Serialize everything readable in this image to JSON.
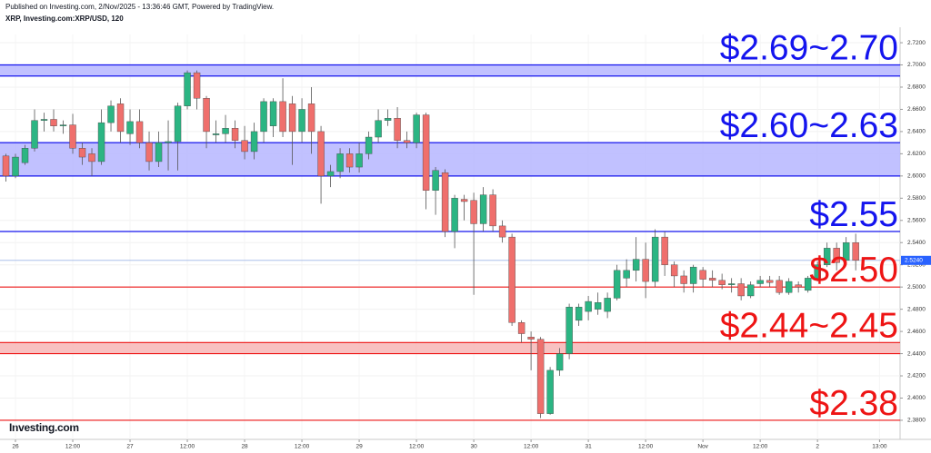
{
  "chart_data": {
    "type": "candlestick",
    "published": "Published on Investing.com, 2/Nov/2025 - 13:36:46 GMT, Powered by TradingView.",
    "title": "XRP, Investing.com:XRP/USD, 120",
    "logo": "Investing.com",
    "up_color": "#2bb583",
    "down_color": "#ef6f6c",
    "x": [
      -2,
      0,
      2,
      4,
      6,
      8,
      10,
      12,
      14,
      16,
      18,
      20,
      22,
      24,
      26,
      28,
      30,
      32,
      34,
      36,
      38,
      40,
      42,
      44,
      46,
      48,
      50,
      52,
      54,
      56,
      58,
      60,
      62,
      64,
      66,
      68,
      70,
      72,
      74,
      76,
      78,
      80,
      82,
      84,
      86,
      88,
      90,
      92,
      94,
      96,
      98,
      100,
      102,
      104,
      106,
      108,
      110,
      112,
      114,
      116,
      118,
      120,
      122,
      124,
      126,
      128,
      130,
      132,
      134,
      136,
      138,
      140,
      142,
      144,
      146,
      148,
      150,
      152,
      154,
      156,
      158,
      160,
      162,
      164,
      166,
      168,
      170,
      172,
      174,
      176
    ],
    "open": [
      2.618,
      2.6,
      2.612,
      2.625,
      2.65,
      2.651,
      2.645,
      2.646,
      2.625,
      2.62,
      2.613,
      2.648,
      2.665,
      2.638,
      2.649,
      2.63,
      2.613,
      2.63,
      2.631,
      2.663,
      2.693,
      2.67,
      2.637,
      2.638,
      2.643,
      2.632,
      2.622,
      2.64,
      2.645,
      2.667,
      2.665,
      2.64,
      2.665,
      2.64,
      2.6,
      2.604,
      2.62,
      2.608,
      2.62,
      2.635,
      2.65,
      2.652,
      2.632,
      2.63,
      2.655,
      2.587,
      2.603,
      2.55,
      2.579,
      2.578,
      2.557,
      2.583,
      2.555,
      2.545,
      2.468,
      2.455,
      2.453,
      2.386,
      2.425,
      2.44,
      2.47,
      2.478,
      2.48,
      2.478,
      2.49,
      2.508,
      2.515,
      2.525,
      2.505,
      2.545,
      2.52,
      2.51,
      2.503,
      2.515,
      2.508,
      2.506,
      2.502,
      2.503,
      2.492,
      2.503,
      2.506,
      2.506,
      2.495,
      2.502,
      2.497,
      2.508,
      2.52,
      2.535,
      2.524,
      2.54
    ],
    "high": [
      2.62,
      2.62,
      2.628,
      2.66,
      2.657,
      2.66,
      2.65,
      2.656,
      2.63,
      2.625,
      2.66,
      2.668,
      2.67,
      2.66,
      2.66,
      2.64,
      2.64,
      2.65,
      2.666,
      2.695,
      2.695,
      2.672,
      2.65,
      2.655,
      2.65,
      2.645,
      2.648,
      2.67,
      2.67,
      2.688,
      2.672,
      2.67,
      2.68,
      2.645,
      2.61,
      2.625,
      2.625,
      2.63,
      2.64,
      2.66,
      2.66,
      2.662,
      2.64,
      2.657,
      2.657,
      2.608,
      2.606,
      2.583,
      2.583,
      2.585,
      2.59,
      2.588,
      2.56,
      2.548,
      2.47,
      2.46,
      2.455,
      2.428,
      2.445,
      2.485,
      2.485,
      2.492,
      2.495,
      2.495,
      2.52,
      2.525,
      2.545,
      2.54,
      2.552,
      2.55,
      2.523,
      2.515,
      2.52,
      2.518,
      2.515,
      2.512,
      2.508,
      2.508,
      2.505,
      2.51,
      2.51,
      2.51,
      2.508,
      2.505,
      2.51,
      2.523,
      2.54,
      2.54,
      2.545,
      2.548
    ],
    "low": [
      2.595,
      2.598,
      2.61,
      2.622,
      2.64,
      2.64,
      2.638,
      2.62,
      2.61,
      2.6,
      2.61,
      2.64,
      2.63,
      2.628,
      2.625,
      2.605,
      2.608,
      2.605,
      2.605,
      2.66,
      2.66,
      2.625,
      2.63,
      2.63,
      2.625,
      2.615,
      2.615,
      2.63,
      2.635,
      2.635,
      2.61,
      2.63,
      2.62,
      2.575,
      2.59,
      2.598,
      2.603,
      2.603,
      2.615,
      2.63,
      2.645,
      2.625,
      2.625,
      2.625,
      2.57,
      2.565,
      2.545,
      2.535,
      2.56,
      2.493,
      2.55,
      2.55,
      2.54,
      2.465,
      2.45,
      2.425,
      2.382,
      2.385,
      2.42,
      2.435,
      2.465,
      2.47,
      2.475,
      2.472,
      2.488,
      2.5,
      2.505,
      2.49,
      2.5,
      2.51,
      2.5,
      2.495,
      2.495,
      2.5,
      2.5,
      2.498,
      2.495,
      2.488,
      2.49,
      2.5,
      2.5,
      2.493,
      2.493,
      2.495,
      2.495,
      2.505,
      2.518,
      2.515,
      2.52,
      2.515
    ],
    "close": [
      2.6,
      2.617,
      2.625,
      2.65,
      2.651,
      2.645,
      2.646,
      2.625,
      2.617,
      2.613,
      2.648,
      2.663,
      2.64,
      2.649,
      2.63,
      2.613,
      2.63,
      2.631,
      2.663,
      2.693,
      2.67,
      2.64,
      2.638,
      2.643,
      2.632,
      2.622,
      2.64,
      2.667,
      2.667,
      2.64,
      2.64,
      2.66,
      2.64,
      2.6,
      2.604,
      2.62,
      2.608,
      2.62,
      2.635,
      2.65,
      2.652,
      2.632,
      2.63,
      2.655,
      2.587,
      2.605,
      2.55,
      2.58,
      2.577,
      2.557,
      2.583,
      2.555,
      2.545,
      2.468,
      2.458,
      2.453,
      2.386,
      2.425,
      2.44,
      2.482,
      2.482,
      2.487,
      2.486,
      2.49,
      2.515,
      2.515,
      2.525,
      2.505,
      2.545,
      2.52,
      2.51,
      2.503,
      2.518,
      2.507,
      2.506,
      2.502,
      2.503,
      2.492,
      2.502,
      2.506,
      2.504,
      2.495,
      2.505,
      2.5,
      2.508,
      2.52,
      2.535,
      2.522,
      2.54,
      2.524
    ],
    "last_price": {
      "value": 2.524,
      "label": "2.5240"
    },
    "bands": [
      {
        "label": "$2.69~2.70",
        "low": 2.69,
        "high": 2.7,
        "color": "#1414ee",
        "fill": "#b6b6ff"
      },
      {
        "label": "$2.60~2.63",
        "low": 2.6,
        "high": 2.63,
        "color": "#1414ee",
        "fill": "#b6b6ff"
      },
      {
        "label": "$2.44~2.45",
        "low": 2.44,
        "high": 2.45,
        "color": "#ee1414",
        "fill": "#f7b6b6"
      }
    ],
    "lines": [
      {
        "label": "$2.55",
        "value": 2.55,
        "color": "#1414ee"
      },
      {
        "label": "$2.50",
        "value": 2.5,
        "color": "#ee1414"
      },
      {
        "label": "$2.38",
        "value": 2.38,
        "color": "#ee1414"
      }
    ],
    "xlim": [
      -3.24,
      185.3
    ],
    "xticks": [
      {
        "value": 0,
        "label": "26"
      },
      {
        "value": 12,
        "label": "12:00"
      },
      {
        "value": 24,
        "label": "27"
      },
      {
        "value": 36,
        "label": "12:00"
      },
      {
        "value": 48,
        "label": "28"
      },
      {
        "value": 60,
        "label": "12:00"
      },
      {
        "value": 72,
        "label": "29"
      },
      {
        "value": 84,
        "label": "12:00"
      },
      {
        "value": 96,
        "label": "30"
      },
      {
        "value": 108,
        "label": "12:00"
      },
      {
        "value": 120,
        "label": "31"
      },
      {
        "value": 132,
        "label": "12:00"
      },
      {
        "value": 144,
        "label": "Nov"
      },
      {
        "value": 156,
        "label": "12:00"
      },
      {
        "value": 168,
        "label": "2"
      },
      {
        "value": 181,
        "label": "13:00"
      }
    ],
    "ylim": [
      2.3628,
      2.7274
    ],
    "yticks": [
      {
        "value": 2.38,
        "label": "2.3800"
      },
      {
        "value": 2.4,
        "label": "2.4000"
      },
      {
        "value": 2.42,
        "label": "2.4200"
      },
      {
        "value": 2.44,
        "label": "2.4400"
      },
      {
        "value": 2.46,
        "label": "2.4600"
      },
      {
        "value": 2.48,
        "label": "2.4800"
      },
      {
        "value": 2.5,
        "label": "2.5000"
      },
      {
        "value": 2.52,
        "label": "2.5200"
      },
      {
        "value": 2.54,
        "label": "2.5400"
      },
      {
        "value": 2.56,
        "label": "2.5600"
      },
      {
        "value": 2.58,
        "label": "2.5800"
      },
      {
        "value": 2.6,
        "label": "2.6000"
      },
      {
        "value": 2.62,
        "label": "2.6200"
      },
      {
        "value": 2.64,
        "label": "2.6400"
      },
      {
        "value": 2.66,
        "label": "2.6600"
      },
      {
        "value": 2.68,
        "label": "2.6800"
      },
      {
        "value": 2.7,
        "label": "2.7000"
      },
      {
        "value": 2.72,
        "label": "2.7200"
      }
    ],
    "grid": true
  }
}
